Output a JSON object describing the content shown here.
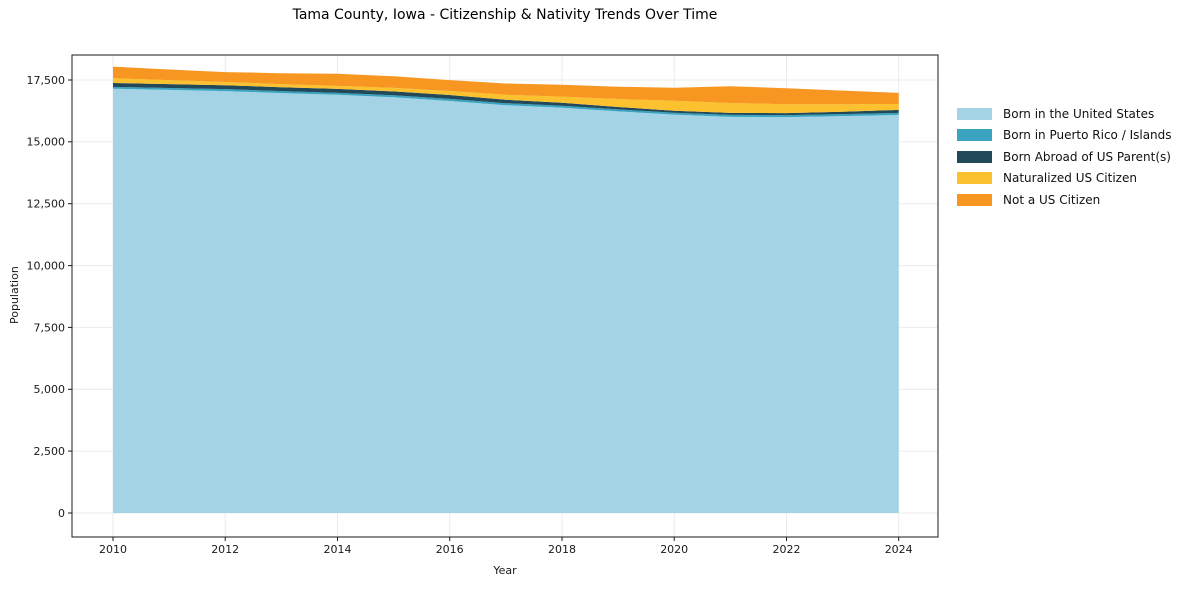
{
  "chart_data": {
    "type": "area",
    "stacked": true,
    "title": "Tama County, Iowa - Citizenship & Nativity Trends Over Time",
    "xlabel": "Year",
    "ylabel": "Population",
    "x": [
      2010,
      2011,
      2012,
      2013,
      2014,
      2015,
      2016,
      2017,
      2018,
      2019,
      2020,
      2021,
      2022,
      2023,
      2024
    ],
    "series": [
      {
        "name": "Born in the United States",
        "color": "#a5d3e6",
        "values": [
          17150,
          17100,
          17050,
          16970,
          16900,
          16800,
          16650,
          16480,
          16380,
          16230,
          16100,
          16010,
          16000,
          16040,
          16090
        ]
      },
      {
        "name": "Born in Puerto Rico / Islands",
        "color": "#3aa4c0",
        "values": [
          70,
          75,
          80,
          80,
          80,
          80,
          85,
          80,
          80,
          80,
          80,
          80,
          80,
          80,
          80
        ]
      },
      {
        "name": "Born Abroad of US Parent(s)",
        "color": "#21495a",
        "values": [
          160,
          160,
          160,
          160,
          160,
          160,
          160,
          140,
          120,
          100,
          80,
          80,
          80,
          100,
          120
        ]
      },
      {
        "name": "Naturalized US Citizen",
        "color": "#fcc12e",
        "values": [
          190,
          160,
          130,
          125,
          120,
          140,
          160,
          200,
          250,
          320,
          400,
          400,
          360,
          300,
          240
        ]
      },
      {
        "name": "Not a US Citizen",
        "color": "#f79722",
        "values": [
          470,
          430,
          400,
          440,
          490,
          470,
          440,
          460,
          480,
          500,
          530,
          680,
          650,
          550,
          450
        ]
      }
    ],
    "x_ticks": [
      2010,
      2012,
      2014,
      2016,
      2018,
      2020,
      2022,
      2024
    ],
    "y_ticks": [
      {
        "value": 0,
        "label": "0"
      },
      {
        "value": 2500,
        "label": "2,500"
      },
      {
        "value": 5000,
        "label": "5,000"
      },
      {
        "value": 7500,
        "label": "7,500"
      },
      {
        "value": 10000,
        "label": "10,000"
      },
      {
        "value": 12500,
        "label": "12,500"
      },
      {
        "value": 15000,
        "label": "15,000"
      },
      {
        "value": 17500,
        "label": "17,500"
      }
    ],
    "xlim": [
      2009.27,
      2024.7
    ],
    "ylim": [
      -970,
      18510
    ],
    "grid": true,
    "grid_color": "#ebebeb",
    "axis_color": "#1a1a1a",
    "legend_position": "right"
  }
}
